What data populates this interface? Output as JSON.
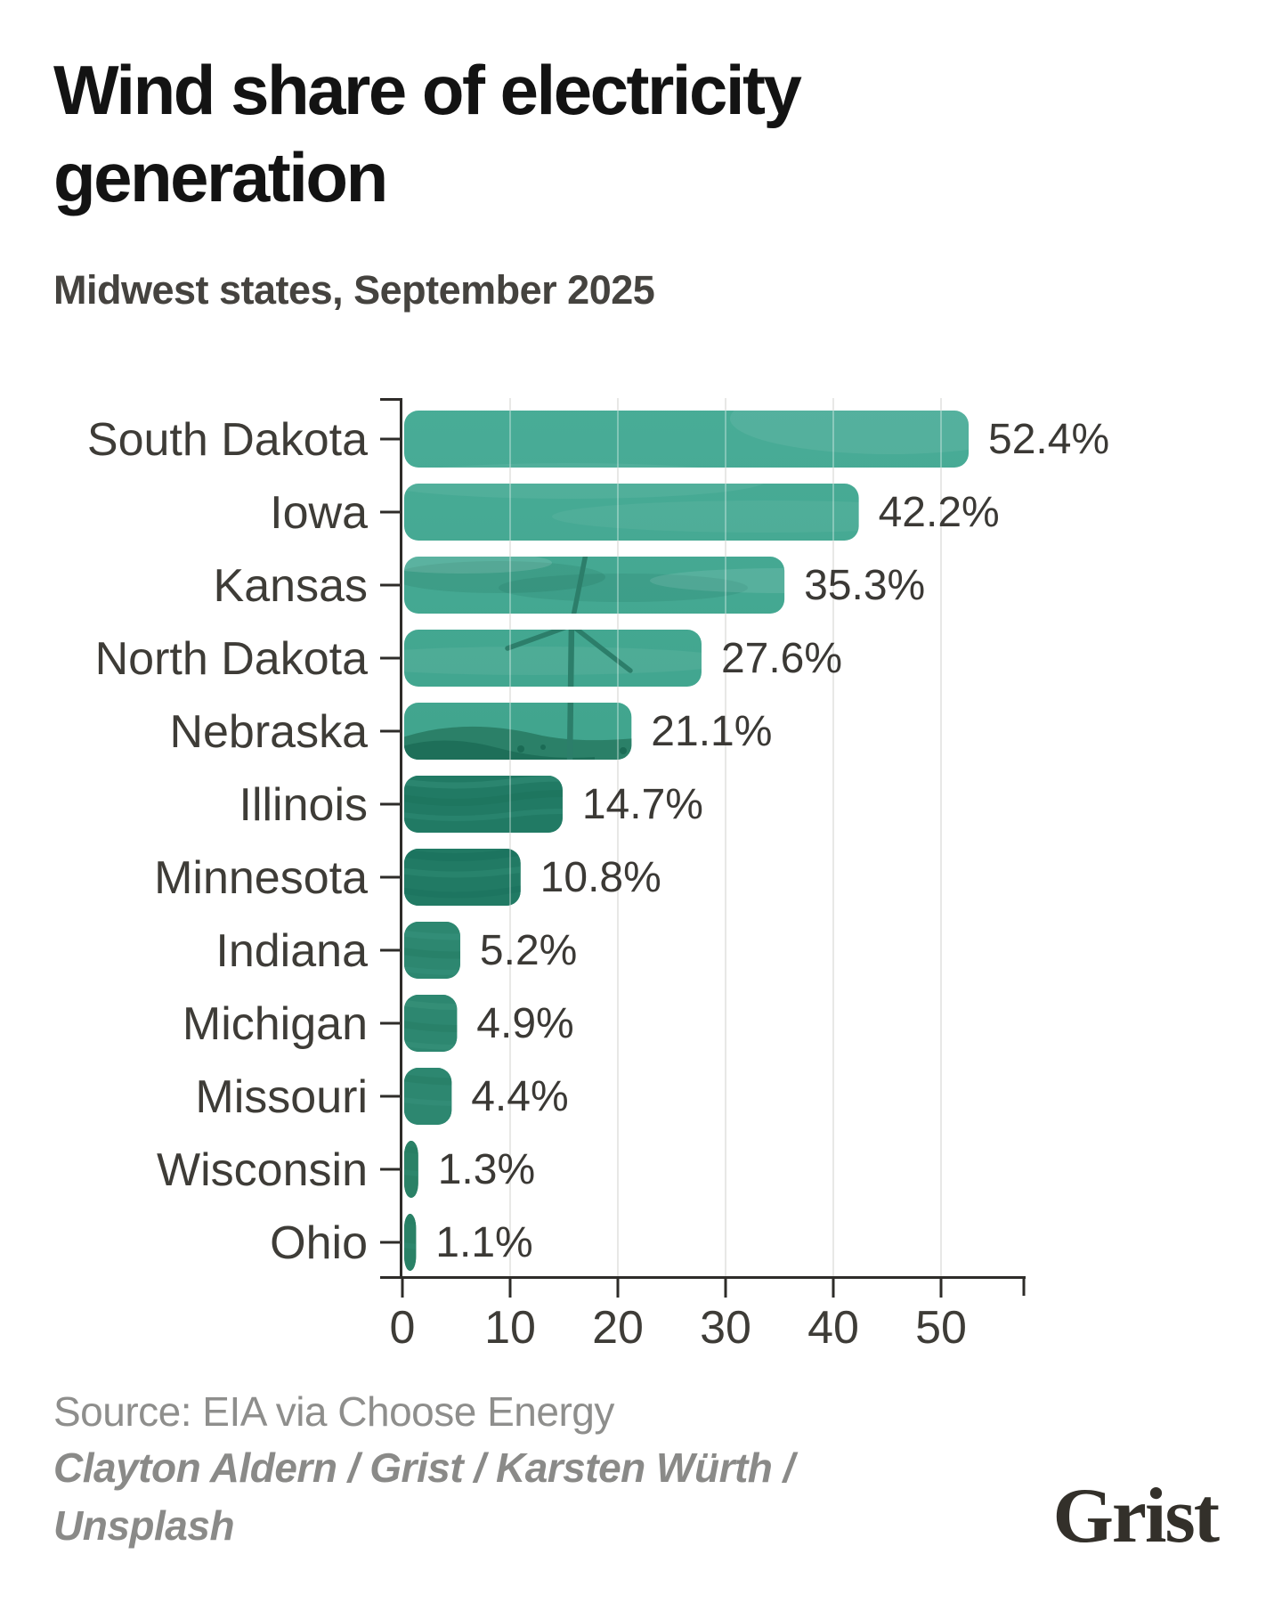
{
  "header": {
    "title": "Wind share of electricity generation",
    "subtitle": "Midwest states, September 2025"
  },
  "chart_data": {
    "type": "bar",
    "orientation": "horizontal",
    "title": "Wind share of electricity generation",
    "subtitle": "Midwest states, September 2025",
    "categories": [
      "South Dakota",
      "Iowa",
      "Kansas",
      "North Dakota",
      "Nebraska",
      "Illinois",
      "Minnesota",
      "Indiana",
      "Michigan",
      "Missouri",
      "Wisconsin",
      "Ohio"
    ],
    "values": [
      52.4,
      42.2,
      35.3,
      27.6,
      21.1,
      14.7,
      10.8,
      5.2,
      4.9,
      4.4,
      1.3,
      1.1
    ],
    "value_labels": [
      "52.4%",
      "42.2%",
      "35.3%",
      "27.6%",
      "21.1%",
      "14.7%",
      "10.8%",
      "5.2%",
      "4.9%",
      "4.4%",
      "1.3%",
      "1.1%"
    ],
    "x_ticks": [
      0,
      10,
      20,
      30,
      40,
      50
    ],
    "xlim": [
      0,
      58
    ],
    "grid": true,
    "legend_position": "none",
    "bar_texture": "teal-tinted wind-turbine photo masked into bars",
    "colors": {
      "bar_sky_teal": "#45a892",
      "bar_hill_teal": "#227b65",
      "axis": "#2e2c29",
      "grid": "#e8e8e6",
      "label": "#3e3c37"
    }
  },
  "footer": {
    "source": "Source: EIA via Choose Energy",
    "credit": "Clayton Aldern / Grist / Karsten Würth / Unsplash",
    "logo_text": "Grist"
  }
}
